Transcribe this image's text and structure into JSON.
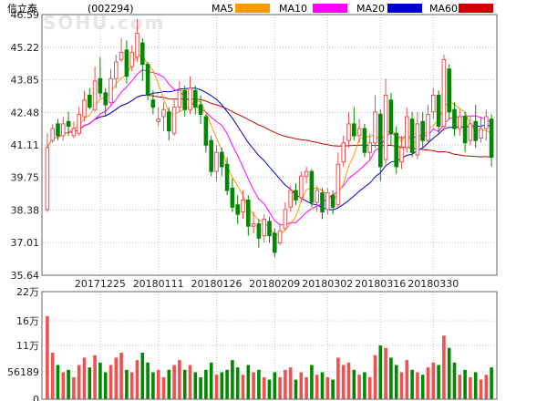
{
  "header": {
    "name": "信立泰",
    "code": "(002294)",
    "ma_labels": [
      "MA5",
      "MA10",
      "MA20",
      "MA60"
    ]
  },
  "watermark": "SOHU.com",
  "colors": {
    "ma5": "#FF9900",
    "ma10": "#FF00FF",
    "ma20": "#0000CC",
    "ma60": "#CC0000",
    "up": "#F05050",
    "down": "#008800",
    "grid": "#BFBFBF",
    "frame": "#666666"
  },
  "chart_data": {
    "type": "candlestick",
    "price_axis": {
      "min": 35.64,
      "max": 46.59,
      "ticks": [
        "46.59",
        "45.22",
        "43.85",
        "42.48",
        "41.11",
        "39.75",
        "38.38",
        "37.01",
        "35.64"
      ]
    },
    "volume_axis": {
      "min": 0,
      "max": 220000,
      "ticks": [
        {
          "label": "22万",
          "v": 220000
        },
        {
          "label": "16万",
          "v": 160000
        },
        {
          "label": "11万",
          "v": 110000
        },
        {
          "label": "56189",
          "v": 56189
        },
        {
          "label": "0",
          "v": 0
        }
      ]
    },
    "date_ticks": [
      {
        "label": "20171225",
        "i": 10
      },
      {
        "label": "20180111",
        "i": 21
      },
      {
        "label": "20180126",
        "i": 32
      },
      {
        "label": "20180209",
        "i": 43
      },
      {
        "label": "20180302",
        "i": 53
      },
      {
        "label": "20180316",
        "i": 63
      },
      {
        "label": "20180330",
        "i": 73
      }
    ],
    "candles": [
      [
        38.4,
        41.0,
        41.6,
        38.3,
        170000
      ],
      [
        41.3,
        41.8,
        42.0,
        41.2,
        95000
      ],
      [
        42.0,
        41.5,
        42.2,
        41.3,
        70000
      ],
      [
        41.5,
        42.0,
        42.3,
        41.3,
        55000
      ],
      [
        42.1,
        41.9,
        42.5,
        41.5,
        60000
      ],
      [
        41.5,
        41.8,
        42.1,
        41.4,
        45000
      ],
      [
        41.6,
        42.4,
        42.7,
        41.5,
        70000
      ],
      [
        42.3,
        43.0,
        43.4,
        42.1,
        85000
      ],
      [
        43.2,
        42.7,
        43.5,
        42.6,
        65000
      ],
      [
        42.6,
        43.8,
        44.4,
        42.5,
        90000
      ],
      [
        43.9,
        43.3,
        44.8,
        43.1,
        75000
      ],
      [
        43.3,
        42.8,
        43.5,
        42.3,
        55000
      ],
      [
        42.9,
        43.9,
        44.3,
        42.8,
        70000
      ],
      [
        43.9,
        44.6,
        44.9,
        43.5,
        85000
      ],
      [
        44.7,
        45.0,
        45.6,
        44.6,
        95000
      ],
      [
        45.1,
        44.0,
        45.5,
        43.7,
        60000
      ],
      [
        44.4,
        45.0,
        45.3,
        44.2,
        55000
      ],
      [
        44.8,
        45.8,
        46.4,
        44.6,
        80000
      ],
      [
        45.4,
        44.5,
        45.6,
        43.8,
        95000
      ],
      [
        44.5,
        43.2,
        44.6,
        43.0,
        75000
      ],
      [
        43.0,
        42.7,
        43.4,
        42.4,
        55000
      ],
      [
        42.1,
        42.2,
        42.7,
        41.9,
        60000
      ],
      [
        42.3,
        42.6,
        42.9,
        41.7,
        45000
      ],
      [
        42.5,
        41.7,
        42.7,
        41.3,
        60000
      ],
      [
        41.6,
        42.7,
        43.0,
        41.5,
        70000
      ],
      [
        42.7,
        43.4,
        43.8,
        42.5,
        80000
      ],
      [
        43.4,
        42.6,
        43.6,
        42.3,
        60000
      ],
      [
        42.6,
        43.5,
        44.0,
        42.4,
        70000
      ],
      [
        43.4,
        42.7,
        43.6,
        42.4,
        55000
      ],
      [
        42.8,
        42.4,
        43.2,
        42.0,
        45000
      ],
      [
        42.3,
        41.1,
        42.4,
        40.8,
        60000
      ],
      [
        41.3,
        40.0,
        41.5,
        39.8,
        75000
      ],
      [
        40.0,
        40.8,
        41.1,
        39.6,
        50000
      ],
      [
        40.8,
        40.2,
        41.0,
        39.8,
        55000
      ],
      [
        40.3,
        39.2,
        40.6,
        39.0,
        60000
      ],
      [
        39.3,
        38.5,
        39.7,
        38.3,
        80000
      ],
      [
        38.6,
        38.2,
        39.0,
        37.8,
        65000
      ],
      [
        38.3,
        38.8,
        39.2,
        38.0,
        50000
      ],
      [
        38.8,
        37.7,
        39.0,
        37.3,
        70000
      ],
      [
        37.7,
        37.8,
        38.3,
        37.4,
        55000
      ],
      [
        37.8,
        37.2,
        38.0,
        36.8,
        60000
      ],
      [
        37.3,
        38.0,
        38.2,
        37.0,
        45000
      ],
      [
        37.9,
        37.3,
        38.1,
        37.0,
        40000
      ],
      [
        37.4,
        36.6,
        37.6,
        36.4,
        55000
      ],
      [
        37.0,
        37.5,
        37.8,
        36.9,
        45000
      ],
      [
        37.6,
        38.4,
        38.7,
        37.5,
        60000
      ],
      [
        38.5,
        39.2,
        39.4,
        38.3,
        65000
      ],
      [
        39.2,
        38.8,
        39.5,
        38.6,
        40000
      ],
      [
        38.9,
        39.8,
        40.0,
        38.7,
        55000
      ],
      [
        39.8,
        40.0,
        40.2,
        39.5,
        45000
      ],
      [
        40.0,
        38.7,
        40.1,
        38.5,
        70000
      ],
      [
        38.7,
        39.2,
        39.4,
        38.3,
        50000
      ],
      [
        39.1,
        38.3,
        39.3,
        38.0,
        55000
      ],
      [
        38.4,
        39.1,
        39.3,
        38.2,
        45000
      ],
      [
        39.0,
        38.5,
        39.2,
        38.2,
        40000
      ],
      [
        38.6,
        40.3,
        40.8,
        38.5,
        85000
      ],
      [
        40.4,
        41.2,
        41.5,
        40.2,
        70000
      ],
      [
        41.3,
        42.0,
        42.5,
        41.0,
        75000
      ],
      [
        42.0,
        41.5,
        42.7,
        41.3,
        60000
      ],
      [
        41.5,
        41.8,
        42.2,
        41.2,
        50000
      ],
      [
        41.8,
        40.8,
        42.0,
        40.6,
        55000
      ],
      [
        40.8,
        41.2,
        41.6,
        40.5,
        45000
      ],
      [
        41.2,
        42.5,
        43.2,
        41.0,
        90000
      ],
      [
        42.4,
        40.2,
        42.6,
        39.6,
        110000
      ],
      [
        40.5,
        43.2,
        43.9,
        40.3,
        105000
      ],
      [
        43.0,
        41.6,
        43.3,
        41.1,
        85000
      ],
      [
        41.6,
        40.2,
        41.9,
        39.9,
        70000
      ],
      [
        40.4,
        41.0,
        41.5,
        40.1,
        55000
      ],
      [
        41.0,
        42.3,
        42.7,
        40.8,
        80000
      ],
      [
        42.2,
        40.8,
        42.5,
        40.6,
        60000
      ],
      [
        40.7,
        42.0,
        42.5,
        40.5,
        55000
      ],
      [
        42.1,
        41.3,
        42.5,
        41.0,
        50000
      ],
      [
        41.3,
        42.4,
        42.8,
        41.2,
        65000
      ],
      [
        42.5,
        43.2,
        43.5,
        42.2,
        75000
      ],
      [
        43.2,
        41.9,
        43.4,
        41.6,
        70000
      ],
      [
        41.9,
        44.7,
        44.9,
        41.7,
        130000
      ],
      [
        44.3,
        42.5,
        44.5,
        42.2,
        105000
      ],
      [
        42.6,
        41.8,
        42.9,
        41.5,
        75000
      ],
      [
        41.8,
        42.3,
        42.6,
        41.5,
        50000
      ],
      [
        42.3,
        41.2,
        42.5,
        40.8,
        60000
      ],
      [
        41.3,
        42.0,
        42.3,
        41.1,
        45000
      ],
      [
        42.1,
        41.3,
        42.8,
        41.0,
        55000
      ],
      [
        41.4,
        41.8,
        42.3,
        41.2,
        40000
      ],
      [
        41.8,
        42.3,
        42.6,
        41.3,
        50000
      ],
      [
        42.2,
        40.6,
        42.4,
        40.2,
        65000
      ]
    ]
  }
}
